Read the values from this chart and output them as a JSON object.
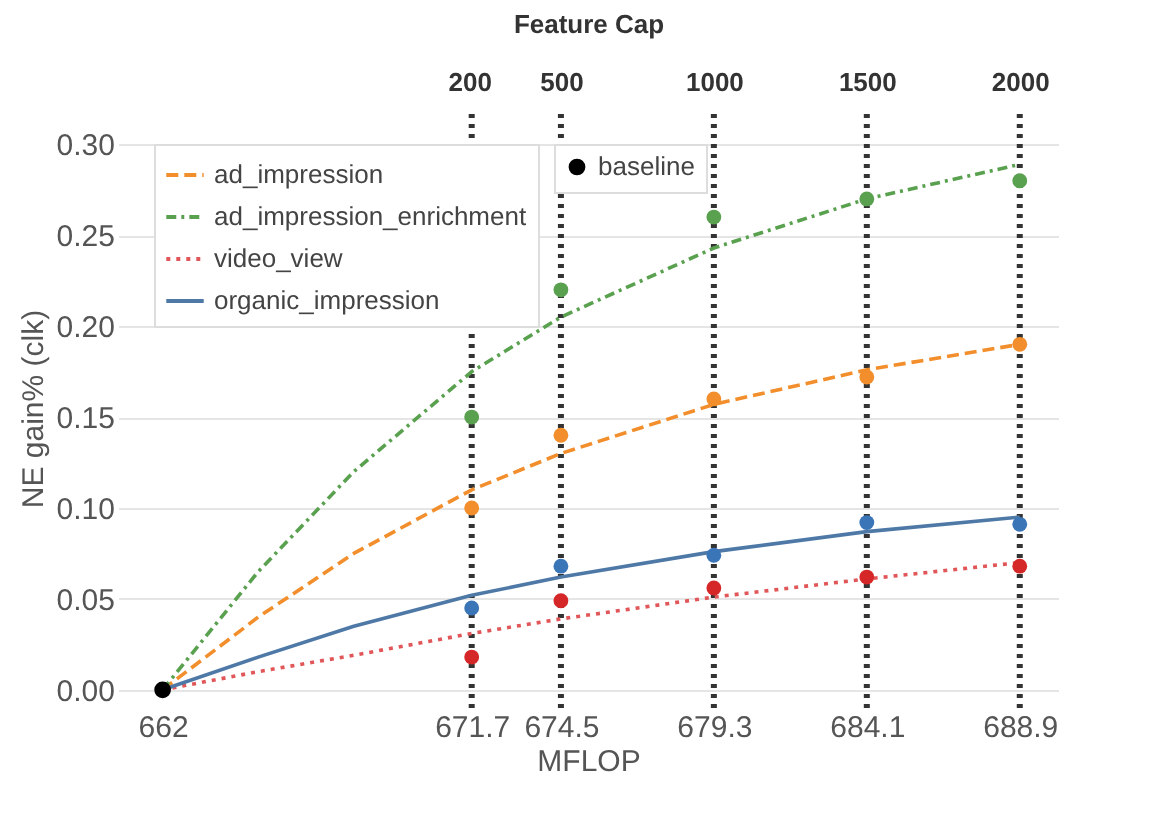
{
  "chart_data": {
    "type": "scatter",
    "xlabel": "MFLOP",
    "ylabel": "NE gain% (clk)",
    "x2label": "Feature Cap",
    "x2lim": [
      -948,
      2125
    ],
    "x2ticks": [
      200,
      500,
      1000,
      1500,
      2000
    ],
    "xlim": [
      660.6,
      690.1
    ],
    "ylim": [
      -0.01,
      0.32
    ],
    "xticks": [
      662,
      671.7,
      674.5,
      679.3,
      684.1,
      688.9
    ],
    "yticks": [
      {
        "value": 0,
        "label": "0.00"
      },
      {
        "value": 0.05,
        "label": "0.05"
      },
      {
        "value": 0.1,
        "label": "0.10"
      },
      {
        "value": 0.15,
        "label": "0.15"
      },
      {
        "value": 0.2,
        "label": "0.20"
      },
      {
        "value": 0.25,
        "label": "0.25"
      },
      {
        "value": 0.3,
        "label": "0.30"
      }
    ],
    "grid": "y",
    "legend": "top left",
    "ref_lines": [
      {
        "axis": "x",
        "value": 671.7,
        "color": "#333333",
        "line_style": "dotted"
      },
      {
        "axis": "x",
        "value": 674.5,
        "color": "#333333",
        "line_style": "dotted"
      },
      {
        "axis": "x",
        "value": 679.3,
        "color": "#333333",
        "line_style": "dotted"
      },
      {
        "axis": "x",
        "value": 684.1,
        "color": "#333333",
        "line_style": "dotted"
      },
      {
        "axis": "x",
        "value": 688.9,
        "color": "#333333",
        "line_style": "dotted"
      }
    ],
    "series": [
      {
        "name": "ad_impression",
        "type": "line",
        "line_style": "dashed",
        "marker": "none",
        "color": "#f28e2b",
        "x": [
          662,
          665,
          668,
          671.7,
          674.5,
          679.3,
          684.1,
          688.9
        ],
        "values": [
          0,
          0.04,
          0.075,
          0.11,
          0.13,
          0.157,
          0.176,
          0.19
        ]
      },
      {
        "name": "ad_impression_enrichment",
        "type": "line",
        "line_style": "dashdot",
        "marker": "none",
        "color": "#59a14f",
        "x": [
          662,
          665,
          668,
          671.7,
          674.5,
          679.3,
          684.1,
          688.9
        ],
        "values": [
          0,
          0.065,
          0.12,
          0.175,
          0.205,
          0.243,
          0.27,
          0.289
        ]
      },
      {
        "name": "video_view",
        "type": "line",
        "line_style": "dotted",
        "marker": "none",
        "color": "#e15759",
        "x": [
          662,
          665,
          668,
          671.7,
          674.5,
          679.3,
          684.1,
          688.9
        ],
        "values": [
          0,
          0.01,
          0.019,
          0.031,
          0.039,
          0.051,
          0.061,
          0.07
        ]
      },
      {
        "name": "organic_impression",
        "type": "line",
        "line_style": "solid",
        "marker": "none",
        "color": "#4e79a7",
        "x": [
          662,
          665,
          668,
          671.7,
          674.5,
          679.3,
          684.1,
          688.9
        ],
        "values": [
          0,
          0.018,
          0.035,
          0.052,
          0.062,
          0.076,
          0.087,
          0.095
        ]
      },
      {
        "marker": "circle",
        "color": "#f28e2b",
        "x": [
          671.7,
          674.5,
          679.3,
          684.1,
          688.9
        ],
        "values": [
          0.1,
          0.14,
          0.16,
          0.172,
          0.19
        ]
      },
      {
        "marker": "circle",
        "color": "#59a14f",
        "x": [
          671.7,
          674.5,
          679.3,
          684.1,
          688.9
        ],
        "values": [
          0.15,
          0.22,
          0.26,
          0.27,
          0.28
        ]
      },
      {
        "marker": "circle",
        "color": "#d62728",
        "x": [
          671.7,
          674.5,
          679.3,
          684.1,
          688.9
        ],
        "values": [
          0.018,
          0.049,
          0.056,
          0.062,
          0.068
        ]
      },
      {
        "marker": "circle",
        "color": "#3a75b8",
        "x": [
          671.7,
          674.5,
          679.3,
          684.1,
          688.9
        ],
        "values": [
          0.045,
          0.068,
          0.074,
          0.092,
          0.091
        ]
      },
      {
        "name": "baseline",
        "marker": "circle",
        "color": "#000000",
        "x": [
          662
        ],
        "values": [
          0
        ]
      }
    ]
  }
}
